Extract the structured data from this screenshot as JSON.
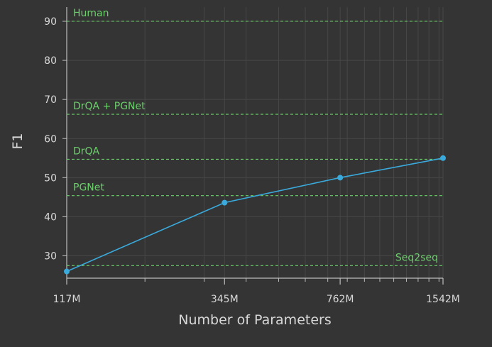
{
  "colors": {
    "background": "#343434",
    "grid": "#474747",
    "axis": "#bdbdbd",
    "text": "#d8d8d8",
    "series": "#3aaadc",
    "reference": "#6ccf6c"
  },
  "chart_data": {
    "type": "line",
    "title": "",
    "xlabel": "Number of Parameters",
    "ylabel": "F1",
    "x_scale": "log",
    "x": [
      117,
      345,
      762,
      1542
    ],
    "x_tick_labels": [
      "117M",
      "345M",
      "762M",
      "1542M"
    ],
    "xlim": [
      117,
      1542
    ],
    "ylim": [
      24,
      93
    ],
    "y_ticks": [
      30,
      40,
      50,
      60,
      70,
      80,
      90
    ],
    "grid": true,
    "series": [
      {
        "values": [
          26,
          43.6,
          50,
          55
        ]
      }
    ],
    "reference_lines": [
      {
        "name": "Human",
        "value": 90
      },
      {
        "name": "DrQA + PGNet",
        "value": 66.2
      },
      {
        "name": "DrQA",
        "value": 54.7
      },
      {
        "name": "PGNet",
        "value": 45.4
      },
      {
        "name": "Seq2seq",
        "value": 27.5
      }
    ]
  }
}
